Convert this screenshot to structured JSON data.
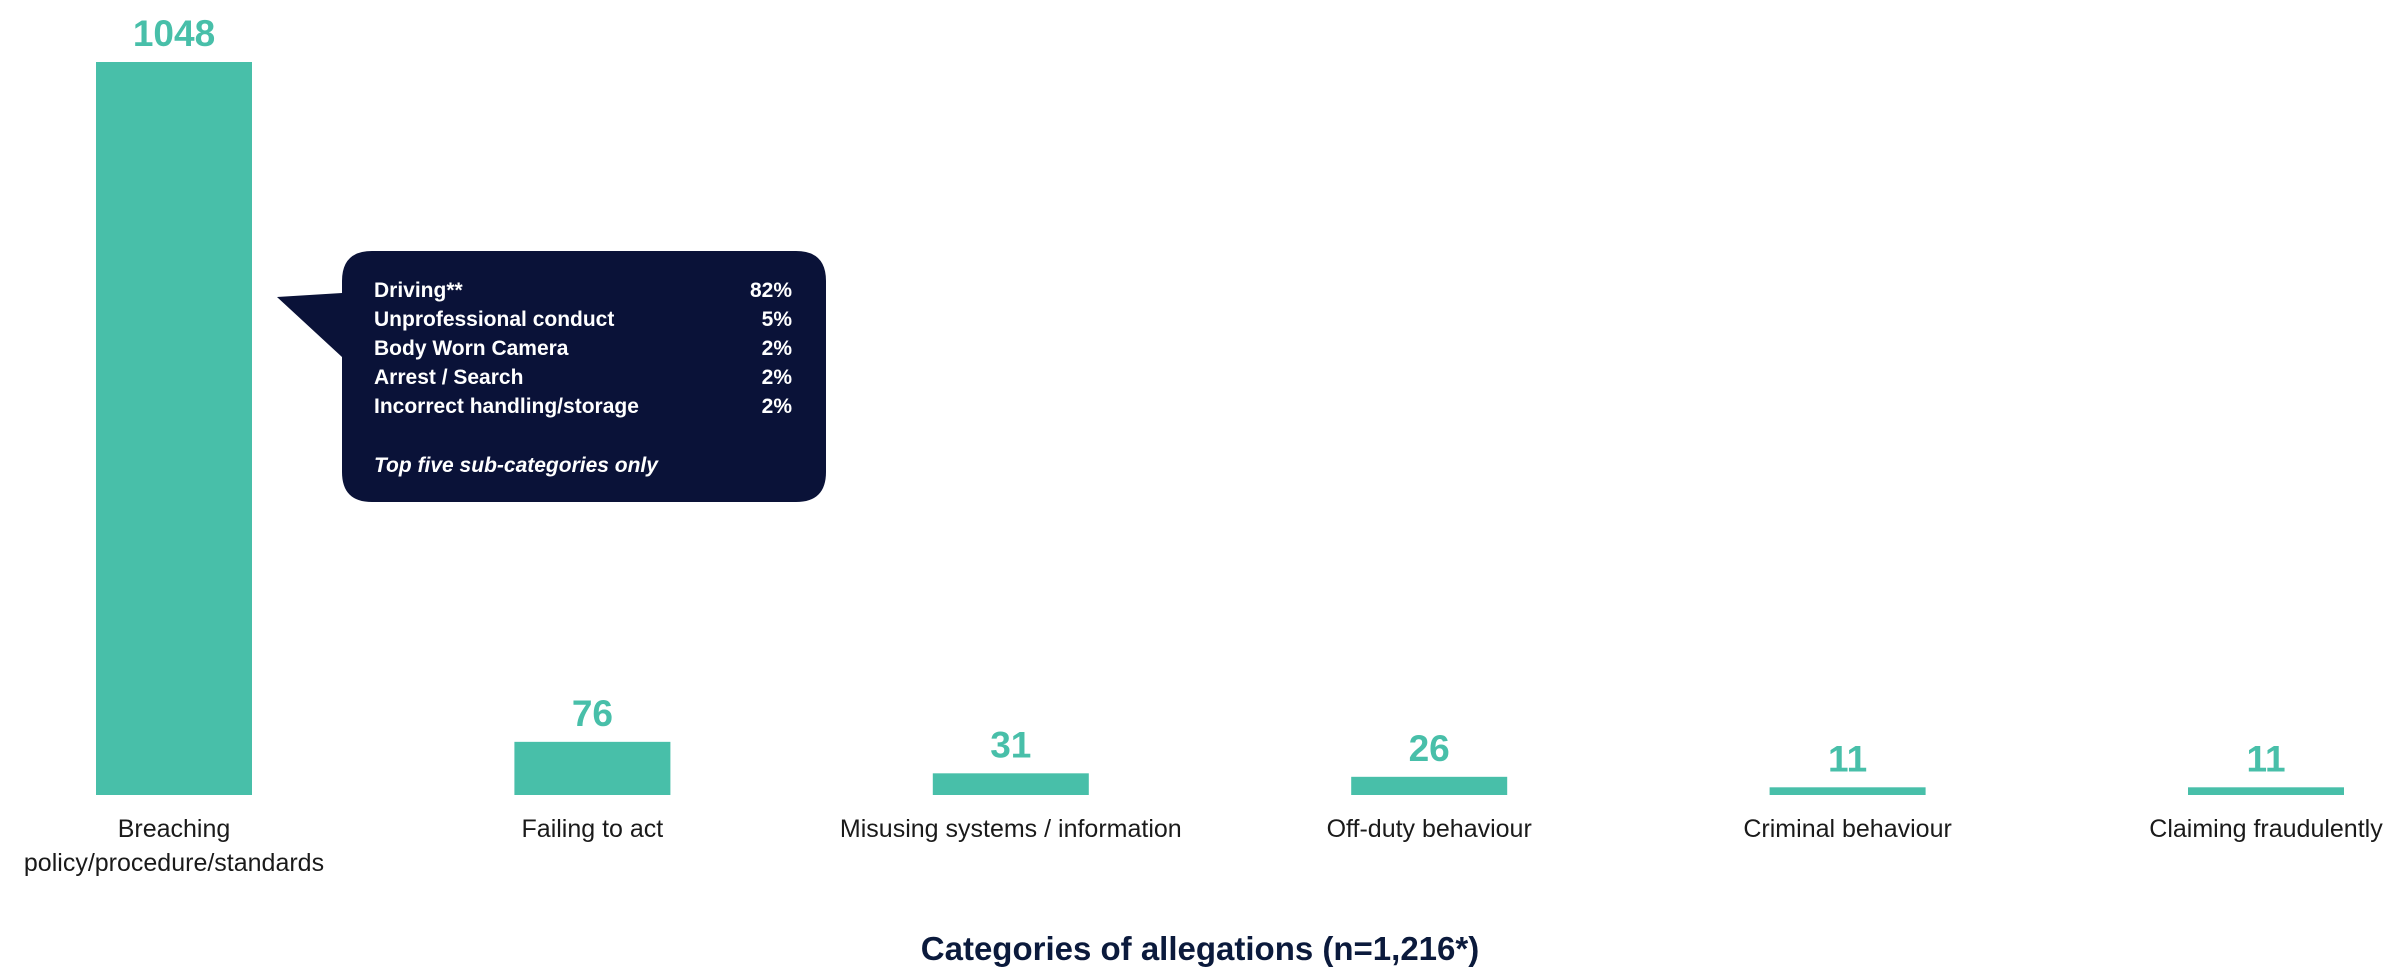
{
  "chart_data": {
    "type": "bar",
    "categories": [
      "Breaching policy/procedure/standards",
      "Failing to act",
      "Misusing systems / information",
      "Off-duty behaviour",
      "Criminal behaviour",
      "Claiming fraudulently"
    ],
    "values": [
      1048,
      76,
      31,
      26,
      11,
      11
    ],
    "color": "#48bfa9",
    "x_label": "Categories of allegations (n=1,216*)",
    "callout": {
      "labels": [
        "Driving**",
        "Unprofessional conduct",
        "Body Worn Camera",
        "Arrest / Search",
        "Incorrect handling/storage"
      ],
      "values": [
        82,
        5,
        2,
        2,
        2
      ],
      "value_labels": [
        "82%",
        "5%",
        "2%",
        "2%",
        "2%"
      ],
      "note": "Top five sub-categories only"
    }
  }
}
